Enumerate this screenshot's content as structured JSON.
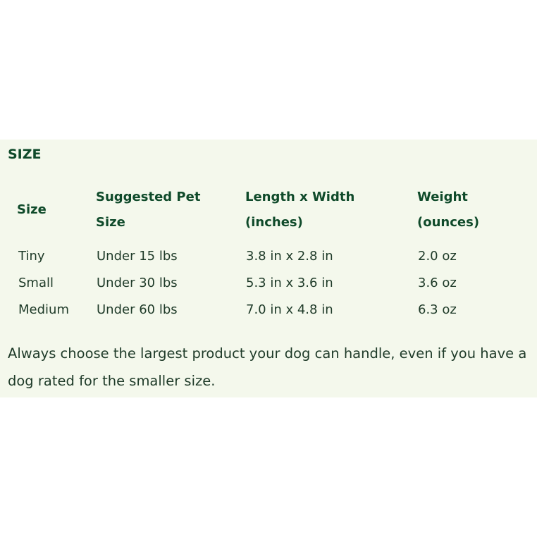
{
  "section_title": "SIZE",
  "table": {
    "headers": [
      "Size",
      "Suggested Pet Size",
      "Length x Width (inches)",
      "Weight (ounces)"
    ],
    "rows": [
      [
        "Tiny",
        "Under 15 lbs",
        "3.8 in x 2.8 in",
        "2.0 oz"
      ],
      [
        "Small",
        "Under 30 lbs",
        "5.3 in x 3.6 in",
        "3.6 oz"
      ],
      [
        "Medium",
        "Under 60 lbs",
        "7.0 in x 4.8 in",
        "6.3 oz"
      ]
    ]
  },
  "note": "Always choose the largest product your dog can handle, even if you have a dog rated for the smaller size.",
  "colors": {
    "background": "#f4f8ec",
    "text": "#0f4a2a"
  }
}
